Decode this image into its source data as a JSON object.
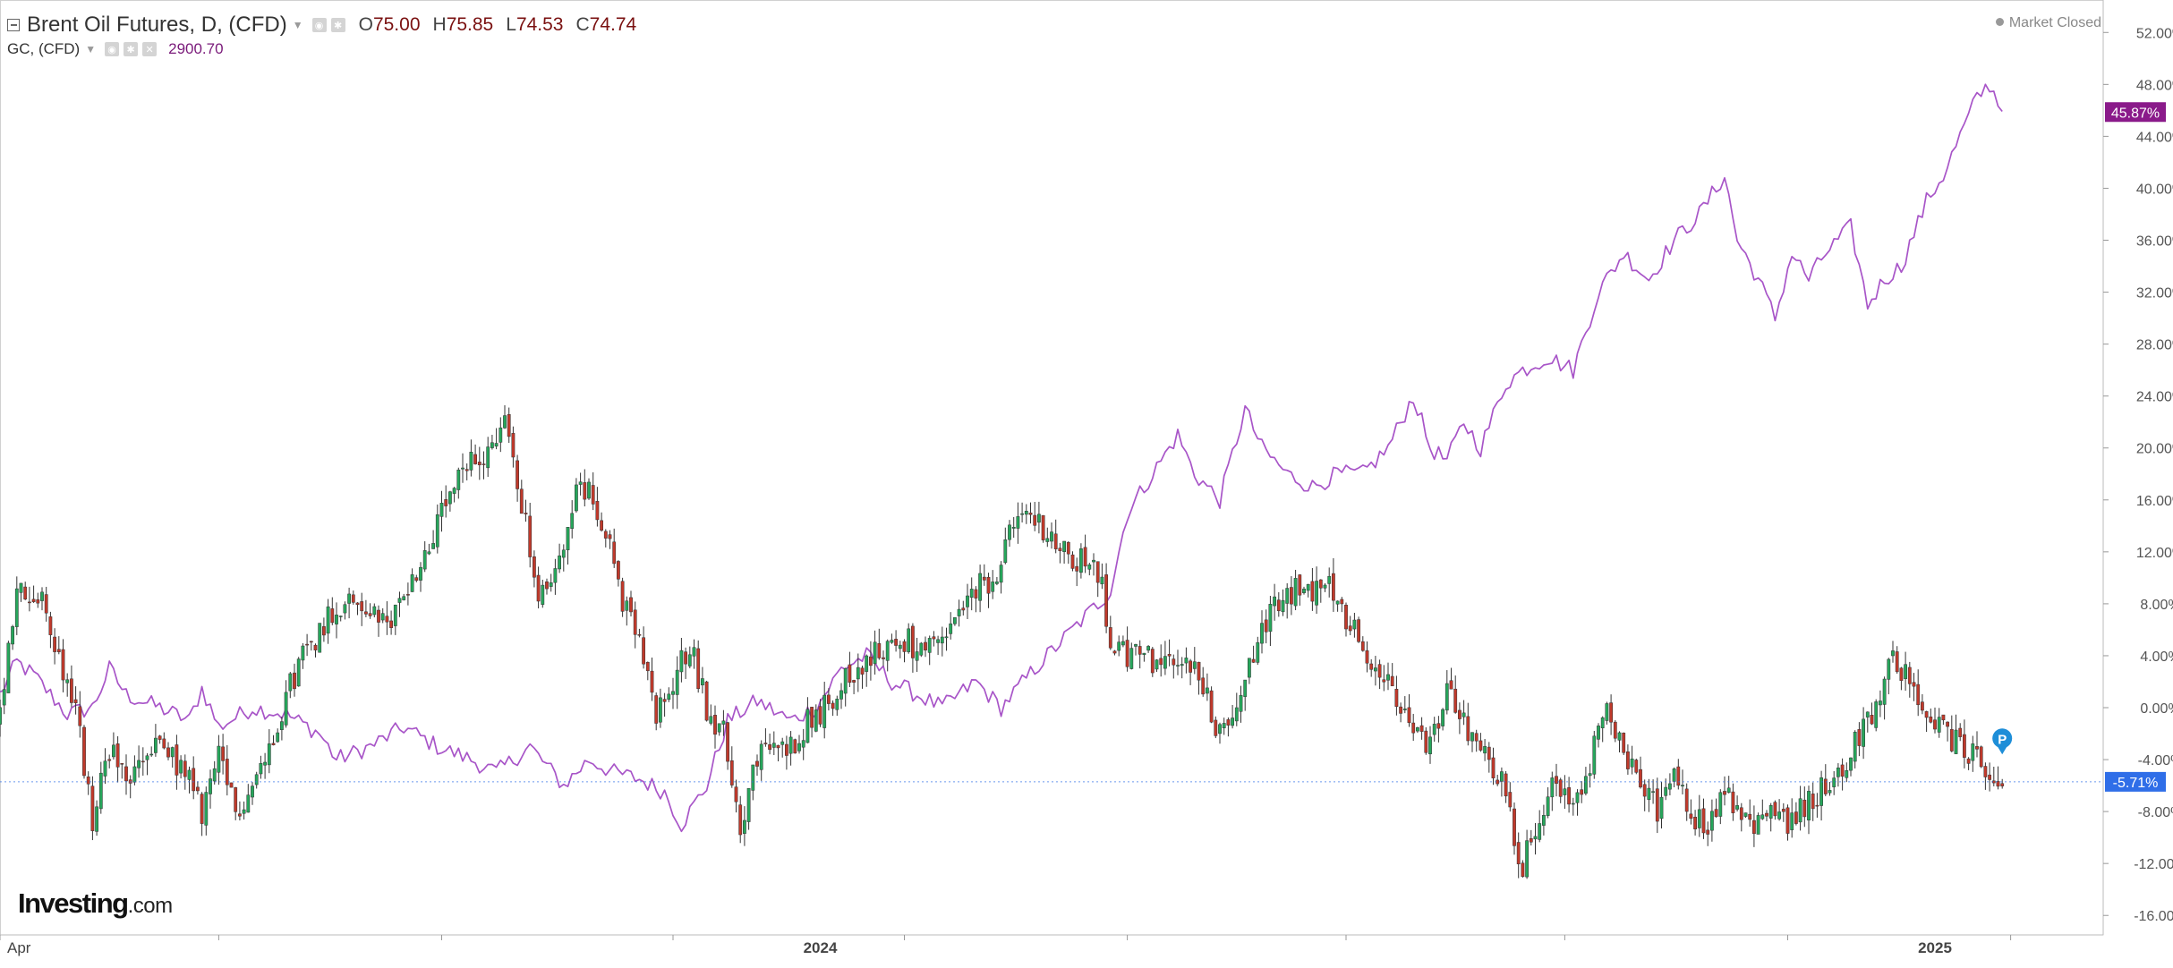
{
  "legend": {
    "primary_symbol": "Brent Oil Futures, D, (CFD)",
    "ohlc": [
      {
        "key": "O",
        "value": "75.00"
      },
      {
        "key": "H",
        "value": "75.85"
      },
      {
        "key": "L",
        "value": "74.53"
      },
      {
        "key": "C",
        "value": "74.74"
      }
    ],
    "secondary_symbol": "GC, (CFD)",
    "secondary_value": "2900.70"
  },
  "market_status": "Market Closed",
  "logo": {
    "brand": "Investing",
    "tld": ".com"
  },
  "colors": {
    "up_candle": "#26a65b",
    "down_candle": "#c0392b",
    "gold_line": "#a855c8",
    "gold_badge": "#8a1a8a",
    "oil_badge": "#2f6ee8",
    "axis_text": "#555555"
  },
  "chart_data": {
    "type": "line",
    "title": "",
    "ylabel": "",
    "xlabel": "",
    "ylim": [
      -17.5,
      54.5
    ],
    "y_ticks": [
      "52.00%",
      "48.00%",
      "44.00%",
      "40.00%",
      "36.00%",
      "32.00%",
      "28.00%",
      "24.00%",
      "20.00%",
      "16.00%",
      "12.00%",
      "8.00%",
      "4.00%",
      "0.00%",
      "-4.00%",
      "-8.00%",
      "-12.00%",
      "-16.00%"
    ],
    "x_labels": [
      {
        "label": "Apr",
        "index": 0
      },
      {
        "label": "2024",
        "index": 195
      },
      {
        "label": "2025",
        "index": 460
      }
    ],
    "x_index_range": [
      0,
      500
    ],
    "current_values": {
      "gold": "45.87%",
      "oil": "-5.71%"
    },
    "series": [
      {
        "name": "GC, (CFD)",
        "style": "line",
        "keypoints": [
          [
            0,
            1
          ],
          [
            4,
            3.5
          ],
          [
            8,
            2.5
          ],
          [
            12,
            1
          ],
          [
            16,
            -0.5
          ],
          [
            22,
            0
          ],
          [
            26,
            3
          ],
          [
            30,
            1
          ],
          [
            38,
            0
          ],
          [
            45,
            -1
          ],
          [
            48,
            1.5
          ],
          [
            52,
            -1.5
          ],
          [
            60,
            0
          ],
          [
            68,
            -0.5
          ],
          [
            76,
            -2
          ],
          [
            80,
            -4
          ],
          [
            88,
            -3
          ],
          [
            96,
            -1.5
          ],
          [
            104,
            -3
          ],
          [
            112,
            -4
          ],
          [
            118,
            -5
          ],
          [
            126,
            -3
          ],
          [
            134,
            -6
          ],
          [
            140,
            -4
          ],
          [
            146,
            -5
          ],
          [
            152,
            -5.5
          ],
          [
            158,
            -6.5
          ],
          [
            162,
            -9
          ],
          [
            168,
            -6
          ],
          [
            173,
            -1
          ],
          [
            180,
            0.5
          ],
          [
            188,
            -1
          ],
          [
            194,
            0
          ],
          [
            200,
            3
          ],
          [
            206,
            4
          ],
          [
            212,
            2
          ],
          [
            218,
            1
          ],
          [
            224,
            0
          ],
          [
            232,
            2
          ],
          [
            238,
            0
          ],
          [
            246,
            3
          ],
          [
            252,
            5
          ],
          [
            258,
            7
          ],
          [
            264,
            9
          ],
          [
            268,
            15
          ],
          [
            274,
            18
          ],
          [
            280,
            21
          ],
          [
            284,
            18
          ],
          [
            290,
            16
          ],
          [
            296,
            23
          ],
          [
            300,
            20
          ],
          [
            306,
            18
          ],
          [
            312,
            17
          ],
          [
            318,
            18
          ],
          [
            324,
            18
          ],
          [
            330,
            20
          ],
          [
            336,
            24
          ],
          [
            340,
            20
          ],
          [
            344,
            19
          ],
          [
            348,
            22
          ],
          [
            352,
            20
          ],
          [
            358,
            25
          ],
          [
            362,
            26
          ],
          [
            368,
            27
          ],
          [
            374,
            26
          ],
          [
            380,
            32
          ],
          [
            386,
            35
          ],
          [
            392,
            33
          ],
          [
            398,
            36
          ],
          [
            404,
            38
          ],
          [
            410,
            41
          ],
          [
            413,
            36
          ],
          [
            418,
            33
          ],
          [
            422,
            30
          ],
          [
            426,
            35
          ],
          [
            430,
            33
          ],
          [
            434,
            35
          ],
          [
            440,
            37
          ],
          [
            444,
            31
          ],
          [
            448,
            33
          ],
          [
            452,
            34
          ],
          [
            458,
            39
          ],
          [
            462,
            41
          ],
          [
            466,
            44
          ],
          [
            470,
            47
          ],
          [
            473,
            48
          ],
          [
            476,
            46
          ]
        ]
      },
      {
        "name": "Brent Oil Futures, D, (CFD)",
        "style": "candles",
        "keypoints": [
          [
            0,
            -1
          ],
          [
            4,
            9
          ],
          [
            10,
            8
          ],
          [
            14,
            4
          ],
          [
            18,
            0
          ],
          [
            22,
            -9
          ],
          [
            26,
            -3
          ],
          [
            30,
            -6
          ],
          [
            34,
            -4
          ],
          [
            38,
            -3
          ],
          [
            44,
            -5
          ],
          [
            48,
            -8
          ],
          [
            52,
            -4
          ],
          [
            56,
            -8
          ],
          [
            60,
            -6
          ],
          [
            64,
            -3
          ],
          [
            68,
            1
          ],
          [
            72,
            4
          ],
          [
            76,
            6
          ],
          [
            80,
            8
          ],
          [
            86,
            8
          ],
          [
            92,
            6
          ],
          [
            96,
            9
          ],
          [
            100,
            11
          ],
          [
            104,
            14
          ],
          [
            110,
            18
          ],
          [
            116,
            20
          ],
          [
            120,
            22
          ],
          [
            124,
            16
          ],
          [
            128,
            8
          ],
          [
            132,
            10
          ],
          [
            136,
            16
          ],
          [
            140,
            17
          ],
          [
            144,
            14
          ],
          [
            148,
            8
          ],
          [
            152,
            5
          ],
          [
            156,
            -1
          ],
          [
            160,
            2
          ],
          [
            164,
            5
          ],
          [
            168,
            0
          ],
          [
            172,
            -2
          ],
          [
            176,
            -9
          ],
          [
            180,
            -4
          ],
          [
            184,
            -3
          ],
          [
            188,
            -3
          ],
          [
            192,
            -1
          ],
          [
            196,
            0
          ],
          [
            200,
            2
          ],
          [
            204,
            3
          ],
          [
            208,
            4
          ],
          [
            212,
            5
          ],
          [
            216,
            5
          ],
          [
            220,
            4
          ],
          [
            224,
            5
          ],
          [
            228,
            7
          ],
          [
            232,
            9
          ],
          [
            236,
            10
          ],
          [
            240,
            13
          ],
          [
            244,
            15
          ],
          [
            248,
            14
          ],
          [
            252,
            12
          ],
          [
            256,
            11
          ],
          [
            260,
            12
          ],
          [
            262,
            9
          ],
          [
            264,
            5
          ],
          [
            268,
            4
          ],
          [
            272,
            4
          ],
          [
            276,
            3
          ],
          [
            280,
            4
          ],
          [
            284,
            3
          ],
          [
            286,
            2
          ],
          [
            288,
            -1
          ],
          [
            290,
            -2
          ],
          [
            292,
            -2
          ],
          [
            296,
            3
          ],
          [
            300,
            6
          ],
          [
            304,
            8
          ],
          [
            308,
            9
          ],
          [
            312,
            9
          ],
          [
            316,
            10
          ],
          [
            320,
            7
          ],
          [
            324,
            5
          ],
          [
            328,
            3
          ],
          [
            332,
            0
          ],
          [
            336,
            -2
          ],
          [
            340,
            -3
          ],
          [
            344,
            1
          ],
          [
            348,
            -1
          ],
          [
            352,
            -3
          ],
          [
            356,
            -5
          ],
          [
            358,
            -7
          ],
          [
            360,
            -10
          ],
          [
            362,
            -12
          ],
          [
            366,
            -8
          ],
          [
            370,
            -5
          ],
          [
            374,
            -8
          ],
          [
            378,
            -4
          ],
          [
            382,
            1
          ],
          [
            386,
            -4
          ],
          [
            390,
            -6
          ],
          [
            394,
            -8
          ],
          [
            398,
            -4
          ],
          [
            402,
            -8
          ],
          [
            406,
            -9
          ],
          [
            410,
            -7
          ],
          [
            414,
            -8
          ],
          [
            418,
            -9
          ],
          [
            422,
            -8
          ],
          [
            426,
            -9
          ],
          [
            430,
            -7
          ],
          [
            434,
            -6
          ],
          [
            438,
            -5
          ],
          [
            442,
            -2
          ],
          [
            446,
            0
          ],
          [
            450,
            4
          ],
          [
            454,
            2
          ],
          [
            458,
            -1
          ],
          [
            462,
            -2
          ],
          [
            466,
            -3
          ],
          [
            470,
            -4
          ],
          [
            473,
            -6
          ],
          [
            476,
            -5.7
          ]
        ]
      }
    ]
  }
}
